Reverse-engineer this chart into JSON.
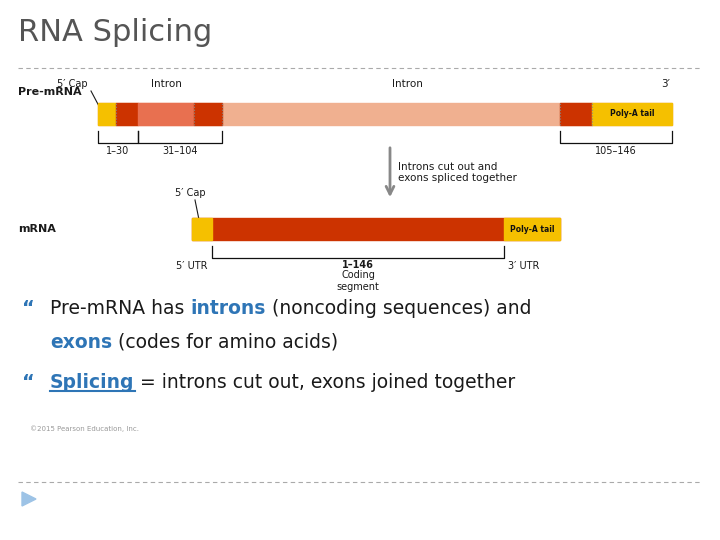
{
  "title": "RNA Splicing",
  "title_color": "#555555",
  "title_fontsize": 22,
  "bg_color": "#ffffff",
  "dashed_color": "#aaaaaa",
  "pre_mrna_label": "Pre-mRNA",
  "mrna_label": "mRNA",
  "yellow_color": "#f5c000",
  "exon_color": "#cc3300",
  "intron1_color": "#e87050",
  "intron2_color": "#f0b090",
  "light_salmon": "#f0b090",
  "pre_intron1_label": "Intron",
  "pre_intron2_label": "Intron",
  "pre_3prime_label": "3′",
  "pre_5prime_label": "5′ Cap",
  "bracket1_label": "1–30",
  "bracket2_label": "31–104",
  "bracket3_label": "105–146",
  "arrow_text": "Introns cut out and\nexons spliced together",
  "arrow_color": "#888888",
  "mrna_5cap_label": "5′ Cap",
  "mrna_polya_label": "Poly-A tail",
  "mrna_coding_label": "1–146",
  "mrna_5utr_label": "5′ UTR",
  "mrna_3utr_label": "3′ UTR",
  "mrna_coding_segment_label": "Coding\nsegment",
  "pre_polya_label": "Poly-A tail",
  "bullet_color": "#2e75b6",
  "text_color": "#1a1a1a",
  "copyright_text": "©2015 Pearson Education, Inc.",
  "footer_triangle_color": "#9dc3e6"
}
